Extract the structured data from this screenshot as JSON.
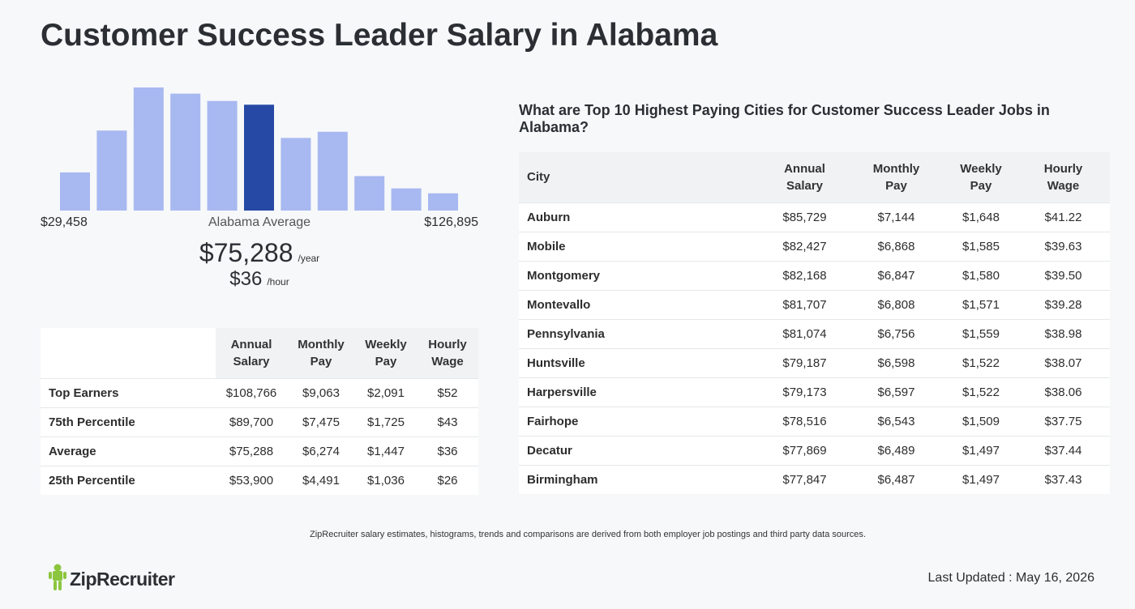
{
  "title": "Customer Success Leader Salary in Alabama",
  "histogram": {
    "bar_levels": [
      0.31,
      0.65,
      1.0,
      0.95,
      0.89,
      0.86,
      0.59,
      0.64,
      0.28,
      0.18,
      0.14
    ],
    "highlight_index": 5,
    "bar_color": "#a8b8f0",
    "highlight_color": "#2549a4",
    "min_label": "$29,458",
    "mid_label": "Alabama Average",
    "max_label": "$126,895"
  },
  "average": {
    "yearly": "$75,288",
    "yearly_unit": "/year",
    "hourly": "$36",
    "hourly_unit": "/hour"
  },
  "percentile_table": {
    "headers": {
      "annual": [
        "Annual",
        "Salary"
      ],
      "monthly": [
        "Monthly",
        "Pay"
      ],
      "weekly": [
        "Weekly",
        "Pay"
      ],
      "hourly": [
        "Hourly",
        "Wage"
      ]
    },
    "rows": [
      {
        "label": "Top Earners",
        "annual": "$108,766",
        "monthly": "$9,063",
        "weekly": "$2,091",
        "hourly": "$52"
      },
      {
        "label": "75th Percentile",
        "annual": "$89,700",
        "monthly": "$7,475",
        "weekly": "$1,725",
        "hourly": "$43"
      },
      {
        "label": "Average",
        "annual": "$75,288",
        "monthly": "$6,274",
        "weekly": "$1,447",
        "hourly": "$36"
      },
      {
        "label": "25th Percentile",
        "annual": "$53,900",
        "monthly": "$4,491",
        "weekly": "$1,036",
        "hourly": "$26"
      }
    ]
  },
  "cities": {
    "heading": "What are Top 10 Highest Paying Cities for Customer Success Leader Jobs in Alabama?",
    "headers": {
      "city": "City",
      "annual": [
        "Annual",
        "Salary"
      ],
      "monthly": [
        "Monthly",
        "Pay"
      ],
      "weekly": [
        "Weekly",
        "Pay"
      ],
      "hourly": [
        "Hourly",
        "Wage"
      ]
    },
    "rows": [
      {
        "city": "Auburn",
        "annual": "$85,729",
        "monthly": "$7,144",
        "weekly": "$1,648",
        "hourly": "$41.22"
      },
      {
        "city": "Mobile",
        "annual": "$82,427",
        "monthly": "$6,868",
        "weekly": "$1,585",
        "hourly": "$39.63"
      },
      {
        "city": "Montgomery",
        "annual": "$82,168",
        "monthly": "$6,847",
        "weekly": "$1,580",
        "hourly": "$39.50"
      },
      {
        "city": "Montevallo",
        "annual": "$81,707",
        "monthly": "$6,808",
        "weekly": "$1,571",
        "hourly": "$39.28"
      },
      {
        "city": "Pennsylvania",
        "annual": "$81,074",
        "monthly": "$6,756",
        "weekly": "$1,559",
        "hourly": "$38.98"
      },
      {
        "city": "Huntsville",
        "annual": "$79,187",
        "monthly": "$6,598",
        "weekly": "$1,522",
        "hourly": "$38.07"
      },
      {
        "city": "Harpersville",
        "annual": "$79,173",
        "monthly": "$6,597",
        "weekly": "$1,522",
        "hourly": "$38.06"
      },
      {
        "city": "Fairhope",
        "annual": "$78,516",
        "monthly": "$6,543",
        "weekly": "$1,509",
        "hourly": "$37.75"
      },
      {
        "city": "Decatur",
        "annual": "$77,869",
        "monthly": "$6,489",
        "weekly": "$1,497",
        "hourly": "$37.44"
      },
      {
        "city": "Birmingham",
        "annual": "$77,847",
        "monthly": "$6,487",
        "weekly": "$1,497",
        "hourly": "$37.43"
      }
    ]
  },
  "footnote": "ZipRecruiter salary estimates, histograms, trends and comparisons are derived from both employer job postings and third party data sources.",
  "logo": {
    "text": "ZipRecruiter",
    "icon": "zip-mascot-icon",
    "color": "#8cc63f"
  },
  "last_updated": "Last Updated : May 16, 2026"
}
